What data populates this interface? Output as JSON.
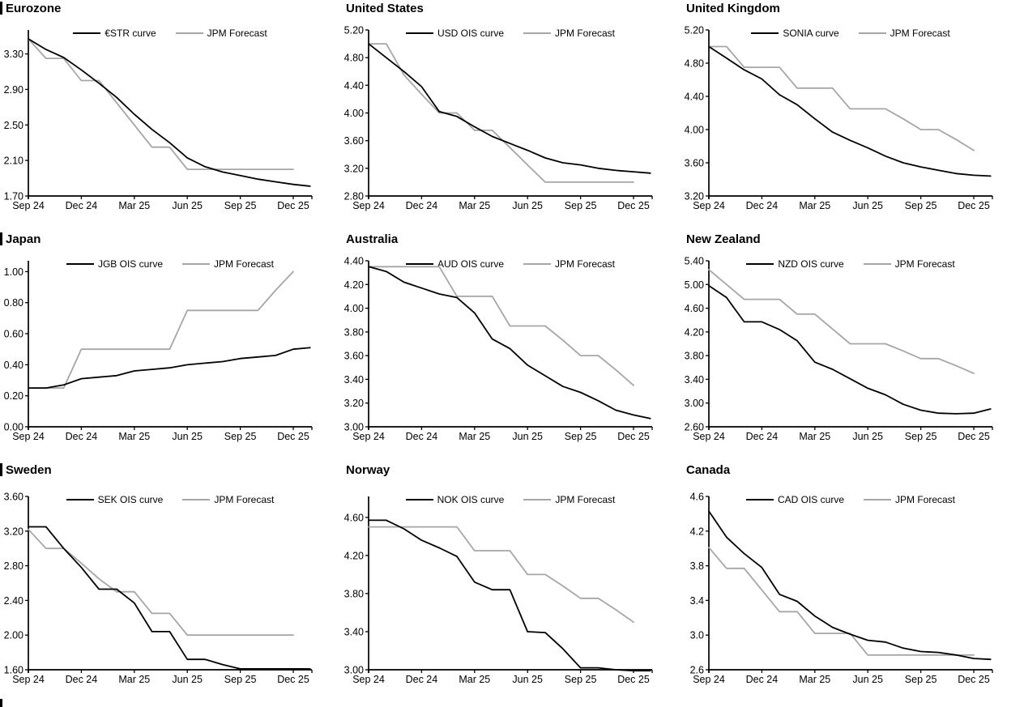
{
  "report": {
    "accent_black": "#000000",
    "forecast_gray": "#a6a6a6"
  },
  "x_axis": {
    "labels": [
      "Sep 24",
      "Dec 24",
      "Mar 25",
      "Jun 25",
      "Sep 25",
      "Dec 25"
    ],
    "tick_months": [
      0,
      3,
      6,
      9,
      12,
      15
    ]
  },
  "chart_data": [
    {
      "type": "line",
      "title": "Eurozone",
      "ylim": [
        1.7,
        3.57
      ],
      "yticks": [
        1.7,
        2.1,
        2.5,
        2.9,
        3.3
      ],
      "y_decimals": 2,
      "grid": false,
      "legend_position": "top",
      "series": [
        {
          "name": "€STR curve",
          "color": "#000000",
          "values": [
            3.47,
            3.35,
            3.26,
            3.12,
            2.97,
            2.81,
            2.62,
            2.45,
            2.3,
            2.13,
            2.03,
            1.97,
            1.93,
            1.89,
            1.86,
            1.83,
            1.81
          ]
        },
        {
          "name": "JPM Forecast",
          "color": "#a6a6a6",
          "values": [
            3.47,
            3.25,
            3.25,
            3.0,
            3.0,
            2.75,
            2.5,
            2.25,
            2.25,
            2.0,
            2.0,
            2.0,
            2.0,
            2.0,
            2.0,
            2.0
          ]
        }
      ]
    },
    {
      "type": "line",
      "title": "United States",
      "ylim": [
        2.8,
        5.2
      ],
      "yticks": [
        2.8,
        3.2,
        3.6,
        4.0,
        4.4,
        4.8,
        5.2
      ],
      "y_decimals": 2,
      "grid": false,
      "legend_position": "top",
      "series": [
        {
          "name": "USD OIS curve",
          "color": "#000000",
          "values": [
            5.0,
            4.8,
            4.6,
            4.38,
            4.02,
            3.95,
            3.8,
            3.66,
            3.56,
            3.46,
            3.35,
            3.28,
            3.25,
            3.2,
            3.17,
            3.15,
            3.13
          ]
        },
        {
          "name": "JPM Forecast",
          "color": "#a6a6a6",
          "values": [
            5.0,
            5.0,
            4.55,
            4.27,
            4.0,
            4.0,
            3.75,
            3.75,
            3.5,
            3.25,
            3.0,
            3.0,
            3.0,
            3.0,
            3.0,
            3.0
          ]
        }
      ]
    },
    {
      "type": "line",
      "title": "United Kingdom",
      "ylim": [
        3.2,
        5.2
      ],
      "yticks": [
        3.2,
        3.6,
        4.0,
        4.4,
        4.8,
        5.2
      ],
      "y_decimals": 2,
      "grid": false,
      "legend_position": "top",
      "series": [
        {
          "name": "SONIA curve",
          "color": "#000000",
          "values": [
            5.0,
            4.86,
            4.72,
            4.61,
            4.42,
            4.3,
            4.13,
            3.97,
            3.87,
            3.78,
            3.68,
            3.6,
            3.55,
            3.51,
            3.47,
            3.45,
            3.44
          ]
        },
        {
          "name": "JPM Forecast",
          "color": "#a6a6a6",
          "values": [
            5.0,
            5.0,
            4.75,
            4.75,
            4.75,
            4.5,
            4.5,
            4.5,
            4.25,
            4.25,
            4.25,
            4.13,
            4.0,
            4.0,
            3.88,
            3.75
          ]
        }
      ]
    },
    {
      "type": "line",
      "title": "Japan",
      "ylim": [
        0.0,
        1.07
      ],
      "yticks": [
        0.0,
        0.2,
        0.4,
        0.6,
        0.8,
        1.0
      ],
      "y_decimals": 2,
      "grid": false,
      "legend_position": "top",
      "series": [
        {
          "name": "JGB OIS curve",
          "color": "#000000",
          "values": [
            0.25,
            0.25,
            0.27,
            0.31,
            0.32,
            0.33,
            0.36,
            0.37,
            0.38,
            0.4,
            0.41,
            0.42,
            0.44,
            0.45,
            0.46,
            0.5,
            0.51
          ]
        },
        {
          "name": "JPM Forecast",
          "color": "#a6a6a6",
          "values": [
            0.25,
            0.25,
            0.25,
            0.5,
            0.5,
            0.5,
            0.5,
            0.5,
            0.5,
            0.75,
            0.75,
            0.75,
            0.75,
            0.75,
            0.88,
            1.0
          ]
        }
      ]
    },
    {
      "type": "line",
      "title": "Australia",
      "ylim": [
        3.0,
        4.4
      ],
      "yticks": [
        3.0,
        3.2,
        3.4,
        3.6,
        3.8,
        4.0,
        4.2,
        4.4
      ],
      "y_decimals": 2,
      "grid": false,
      "legend_position": "top",
      "series": [
        {
          "name": "AUD OIS curve",
          "color": "#000000",
          "values": [
            4.35,
            4.31,
            4.22,
            4.17,
            4.12,
            4.09,
            3.96,
            3.74,
            3.66,
            3.52,
            3.43,
            3.34,
            3.29,
            3.22,
            3.14,
            3.1,
            3.07
          ]
        },
        {
          "name": "JPM Forecast",
          "color": "#a6a6a6",
          "values": [
            4.35,
            4.35,
            4.35,
            4.35,
            4.35,
            4.1,
            4.1,
            4.1,
            3.85,
            3.85,
            3.85,
            3.73,
            3.6,
            3.6,
            3.48,
            3.35
          ]
        }
      ]
    },
    {
      "type": "line",
      "title": "New Zealand",
      "ylim": [
        2.6,
        5.4
      ],
      "yticks": [
        2.6,
        3.0,
        3.4,
        3.8,
        4.2,
        4.6,
        5.0,
        5.4
      ],
      "y_decimals": 2,
      "grid": false,
      "legend_position": "top",
      "series": [
        {
          "name": "NZD OIS curve",
          "color": "#000000",
          "values": [
            4.98,
            4.78,
            4.37,
            4.37,
            4.24,
            4.05,
            3.69,
            3.57,
            3.41,
            3.25,
            3.14,
            2.98,
            2.88,
            2.83,
            2.82,
            2.83,
            2.9
          ]
        },
        {
          "name": "JPM Forecast",
          "color": "#a6a6a6",
          "values": [
            5.25,
            5.0,
            4.75,
            4.75,
            4.75,
            4.5,
            4.5,
            4.25,
            4.0,
            4.0,
            4.0,
            3.88,
            3.75,
            3.75,
            3.63,
            3.5
          ]
        }
      ]
    },
    {
      "type": "line",
      "title": "Sweden",
      "ylim": [
        1.6,
        3.6
      ],
      "yticks": [
        1.6,
        2.0,
        2.4,
        2.8,
        3.2,
        3.6
      ],
      "y_decimals": 2,
      "grid": false,
      "legend_position": "top",
      "series": [
        {
          "name": "SEK OIS curve",
          "color": "#000000",
          "values": [
            3.25,
            3.25,
            3.0,
            2.78,
            2.53,
            2.53,
            2.37,
            2.04,
            2.04,
            1.72,
            1.72,
            1.66,
            1.61,
            1.61,
            1.61,
            1.61,
            1.61
          ]
        },
        {
          "name": "JPM Forecast",
          "color": "#a6a6a6",
          "values": [
            3.22,
            3.0,
            3.0,
            2.83,
            2.65,
            2.5,
            2.5,
            2.25,
            2.25,
            2.0,
            2.0,
            2.0,
            2.0,
            2.0,
            2.0,
            2.0
          ]
        }
      ]
    },
    {
      "type": "line",
      "title": "Norway",
      "ylim": [
        3.0,
        4.82
      ],
      "yticks": [
        3.0,
        3.4,
        3.8,
        4.2,
        4.6
      ],
      "y_decimals": 2,
      "grid": false,
      "legend_position": "top",
      "series": [
        {
          "name": "NOK OIS curve",
          "color": "#000000",
          "values": [
            4.57,
            4.57,
            4.48,
            4.36,
            4.28,
            4.19,
            3.92,
            3.84,
            3.84,
            3.4,
            3.39,
            3.22,
            3.02,
            3.02,
            3.0,
            2.99,
            2.99
          ]
        },
        {
          "name": "JPM Forecast",
          "color": "#a6a6a6",
          "values": [
            4.5,
            4.5,
            4.5,
            4.5,
            4.5,
            4.5,
            4.25,
            4.25,
            4.25,
            4.0,
            4.0,
            3.88,
            3.75,
            3.75,
            3.63,
            3.5
          ]
        }
      ]
    },
    {
      "type": "line",
      "title": "Canada",
      "ylim": [
        2.6,
        4.6
      ],
      "yticks": [
        2.6,
        3.0,
        3.4,
        3.8,
        4.2,
        4.6
      ],
      "y_decimals": 1,
      "grid": false,
      "legend_position": "top",
      "series": [
        {
          "name": "CAD OIS curve",
          "color": "#000000",
          "values": [
            4.43,
            4.13,
            3.94,
            3.78,
            3.47,
            3.39,
            3.22,
            3.09,
            3.01,
            2.94,
            2.92,
            2.85,
            2.81,
            2.8,
            2.77,
            2.73,
            2.72
          ]
        },
        {
          "name": "JPM Forecast",
          "color": "#a6a6a6",
          "values": [
            4.01,
            3.77,
            3.77,
            3.52,
            3.27,
            3.27,
            3.02,
            3.02,
            3.02,
            2.77,
            2.77,
            2.77,
            2.77,
            2.77,
            2.77,
            2.77
          ]
        }
      ]
    }
  ]
}
